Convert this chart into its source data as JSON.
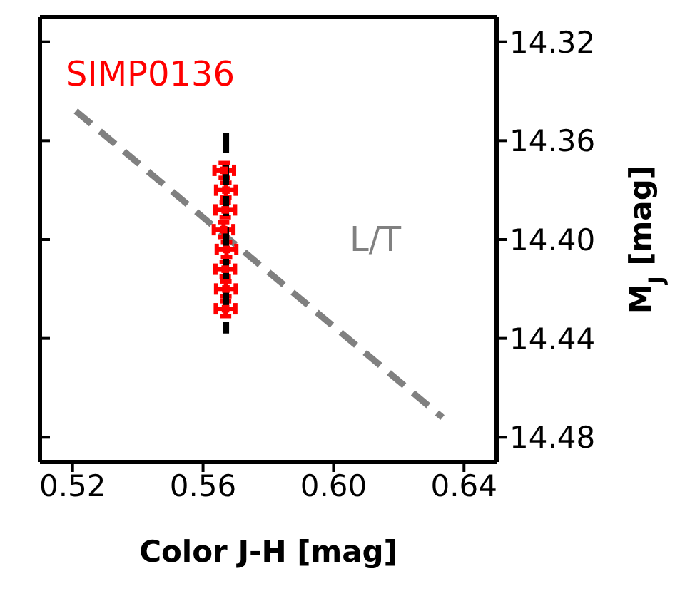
{
  "chart_data": {
    "type": "scatter",
    "xlabel": "Color J-H [mag]",
    "ylabel": "M$_{J}$ [mag]",
    "xlim": [
      0.51,
      0.65
    ],
    "xticks": [
      {
        "value": 0.52,
        "label": "0.52"
      },
      {
        "value": 0.56,
        "label": "0.56"
      },
      {
        "value": 0.6,
        "label": "0.60"
      },
      {
        "value": 0.64,
        "label": "0.64"
      }
    ],
    "ylim": [
      14.49,
      14.31
    ],
    "yticks": [
      {
        "value": 14.32,
        "label": "14.32"
      },
      {
        "value": 14.36,
        "label": "14.36"
      },
      {
        "value": 14.4,
        "label": "14.40"
      },
      {
        "value": 14.44,
        "label": "14.44"
      },
      {
        "value": 14.48,
        "label": "14.48"
      }
    ],
    "grid": false,
    "legend": false,
    "series": [
      {
        "type": "line",
        "name": "L/T",
        "color": "#808080",
        "line_style": "dashed",
        "marker": "none",
        "x": [
          0.521,
          0.6334
        ],
        "values": [
          14.348,
          14.472
        ]
      },
      {
        "name": "SIMP0136",
        "color": "#ff0000",
        "marker": "square",
        "x": [
          0.5665,
          0.567,
          0.5668,
          0.5663,
          0.5672,
          0.5668,
          0.567,
          0.5669
        ],
        "values": [
          14.372,
          14.38,
          14.388,
          14.396,
          14.404,
          14.412,
          14.42,
          14.428
        ],
        "errors": [
          0.003,
          0.003,
          0.003,
          0.003,
          0.003,
          0.003,
          0.003,
          0.003
        ],
        "xerrors": [
          0.003,
          0.003,
          0.003,
          0.003,
          0.003,
          0.003,
          0.003,
          0.003
        ]
      },
      {
        "type": "line",
        "color": "#000000",
        "line_style": "dashed",
        "marker": "none",
        "x": [
          0.567,
          0.567
        ],
        "values": [
          14.357,
          14.438
        ]
      }
    ]
  }
}
